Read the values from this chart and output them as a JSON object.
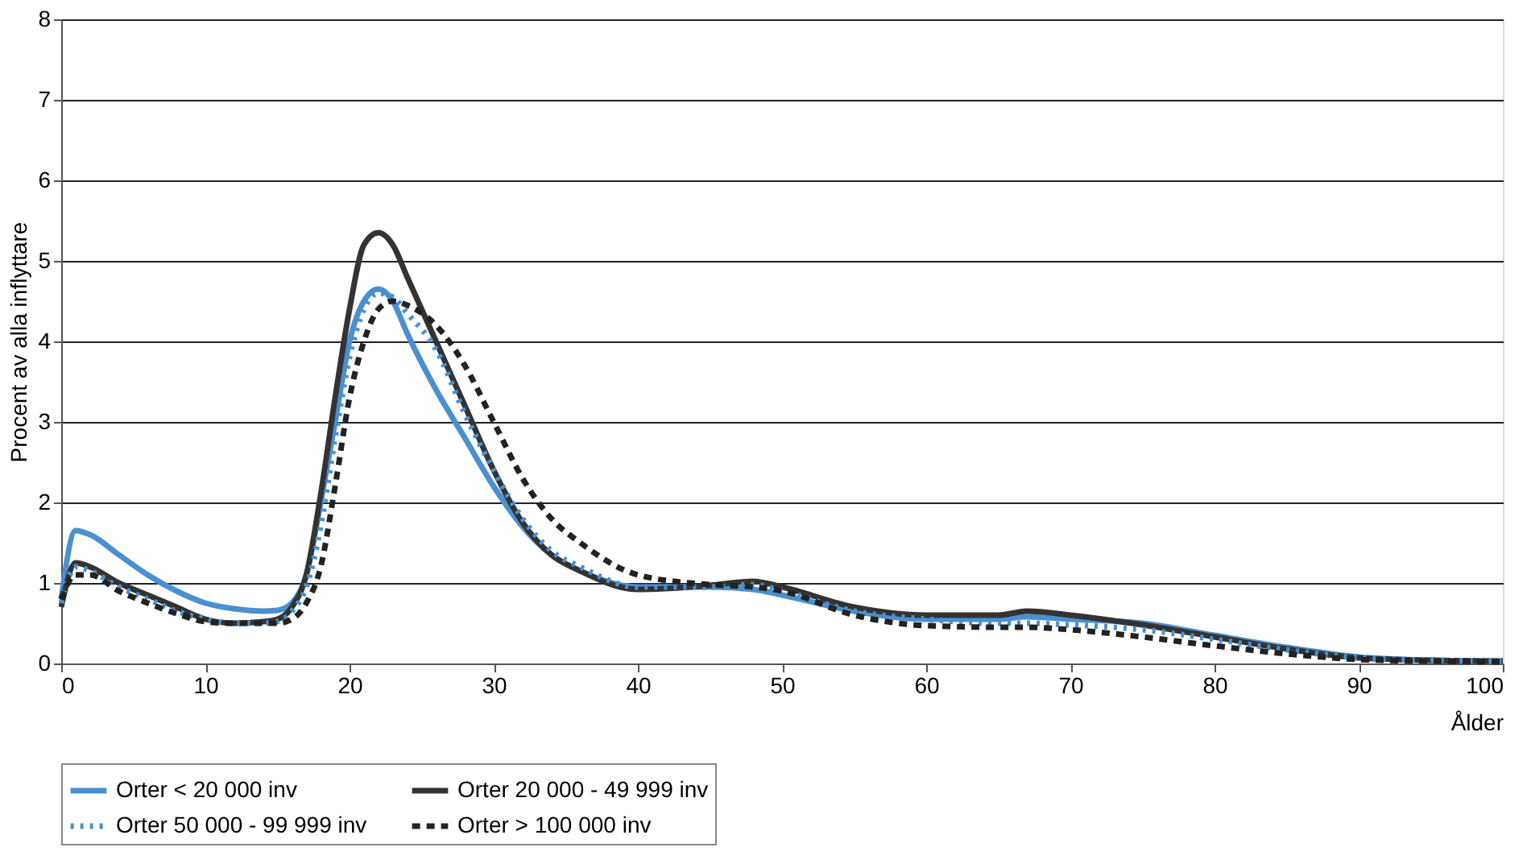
{
  "chart_data": {
    "type": "line",
    "xlabel": "Ålder",
    "ylabel": "Procent av alla inflyttare",
    "x": [
      0,
      1,
      2,
      4,
      6,
      8,
      10,
      12,
      14,
      15,
      16,
      17,
      18,
      19,
      20,
      21,
      22,
      23,
      24,
      26,
      28,
      30,
      32,
      34,
      36,
      40,
      45,
      48,
      50,
      55,
      60,
      65,
      67,
      70,
      75,
      80,
      85,
      90,
      95,
      100
    ],
    "xlim": [
      0,
      100
    ],
    "xticks": [
      0,
      10,
      20,
      30,
      40,
      50,
      60,
      70,
      80,
      90,
      100
    ],
    "ylim": [
      0,
      8
    ],
    "yticks": [
      0,
      1,
      2,
      3,
      4,
      5,
      6,
      7,
      8
    ],
    "grid": "y",
    "legend": "bottom",
    "marker": "none",
    "series": [
      {
        "name": "Orter < 20 000 inv",
        "color": "#4a90d0",
        "line_style": "solid",
        "values": [
          0.8,
          1.65,
          1.6,
          1.35,
          1.1,
          0.9,
          0.75,
          0.68,
          0.65,
          0.66,
          0.75,
          1.1,
          2.0,
          3.0,
          4.0,
          4.5,
          4.65,
          4.5,
          4.1,
          3.4,
          2.8,
          2.2,
          1.7,
          1.35,
          1.15,
          0.95,
          0.95,
          0.92,
          0.85,
          0.65,
          0.55,
          0.55,
          0.58,
          0.55,
          0.5,
          0.35,
          0.2,
          0.08,
          0.04,
          0.03
        ]
      },
      {
        "name": "Orter 20 000 - 49 999 inv",
        "color": "#333333",
        "line_style": "solid",
        "values": [
          0.7,
          1.25,
          1.2,
          1.0,
          0.85,
          0.7,
          0.55,
          0.5,
          0.52,
          0.55,
          0.7,
          1.1,
          2.1,
          3.3,
          4.4,
          5.2,
          5.35,
          5.2,
          4.8,
          4.0,
          3.2,
          2.4,
          1.75,
          1.35,
          1.15,
          0.92,
          0.97,
          1.02,
          0.95,
          0.7,
          0.6,
          0.6,
          0.65,
          0.6,
          0.48,
          0.33,
          0.18,
          0.07,
          0.04,
          0.03
        ]
      },
      {
        "name": "Orter 50 000 - 99 999 inv",
        "color": "#4a90d0",
        "line_style": "dotted",
        "values": [
          0.75,
          1.2,
          1.15,
          0.95,
          0.8,
          0.65,
          0.55,
          0.5,
          0.5,
          0.52,
          0.65,
          0.95,
          1.7,
          2.8,
          3.8,
          4.4,
          4.6,
          4.55,
          4.35,
          3.9,
          3.1,
          2.4,
          1.8,
          1.4,
          1.2,
          0.95,
          0.95,
          0.98,
          0.9,
          0.65,
          0.55,
          0.5,
          0.5,
          0.48,
          0.42,
          0.3,
          0.17,
          0.07,
          0.04,
          0.03
        ]
      },
      {
        "name": "Orter > 100 000 inv",
        "color": "#222222",
        "line_style": "dashed",
        "values": [
          0.8,
          1.1,
          1.1,
          0.9,
          0.75,
          0.62,
          0.52,
          0.5,
          0.5,
          0.5,
          0.55,
          0.75,
          1.2,
          2.2,
          3.3,
          4.0,
          4.4,
          4.5,
          4.45,
          4.2,
          3.7,
          3.0,
          2.3,
          1.8,
          1.5,
          1.1,
          0.98,
          0.95,
          0.9,
          0.6,
          0.47,
          0.45,
          0.45,
          0.42,
          0.33,
          0.22,
          0.12,
          0.05,
          0.03,
          0.02
        ]
      }
    ]
  }
}
